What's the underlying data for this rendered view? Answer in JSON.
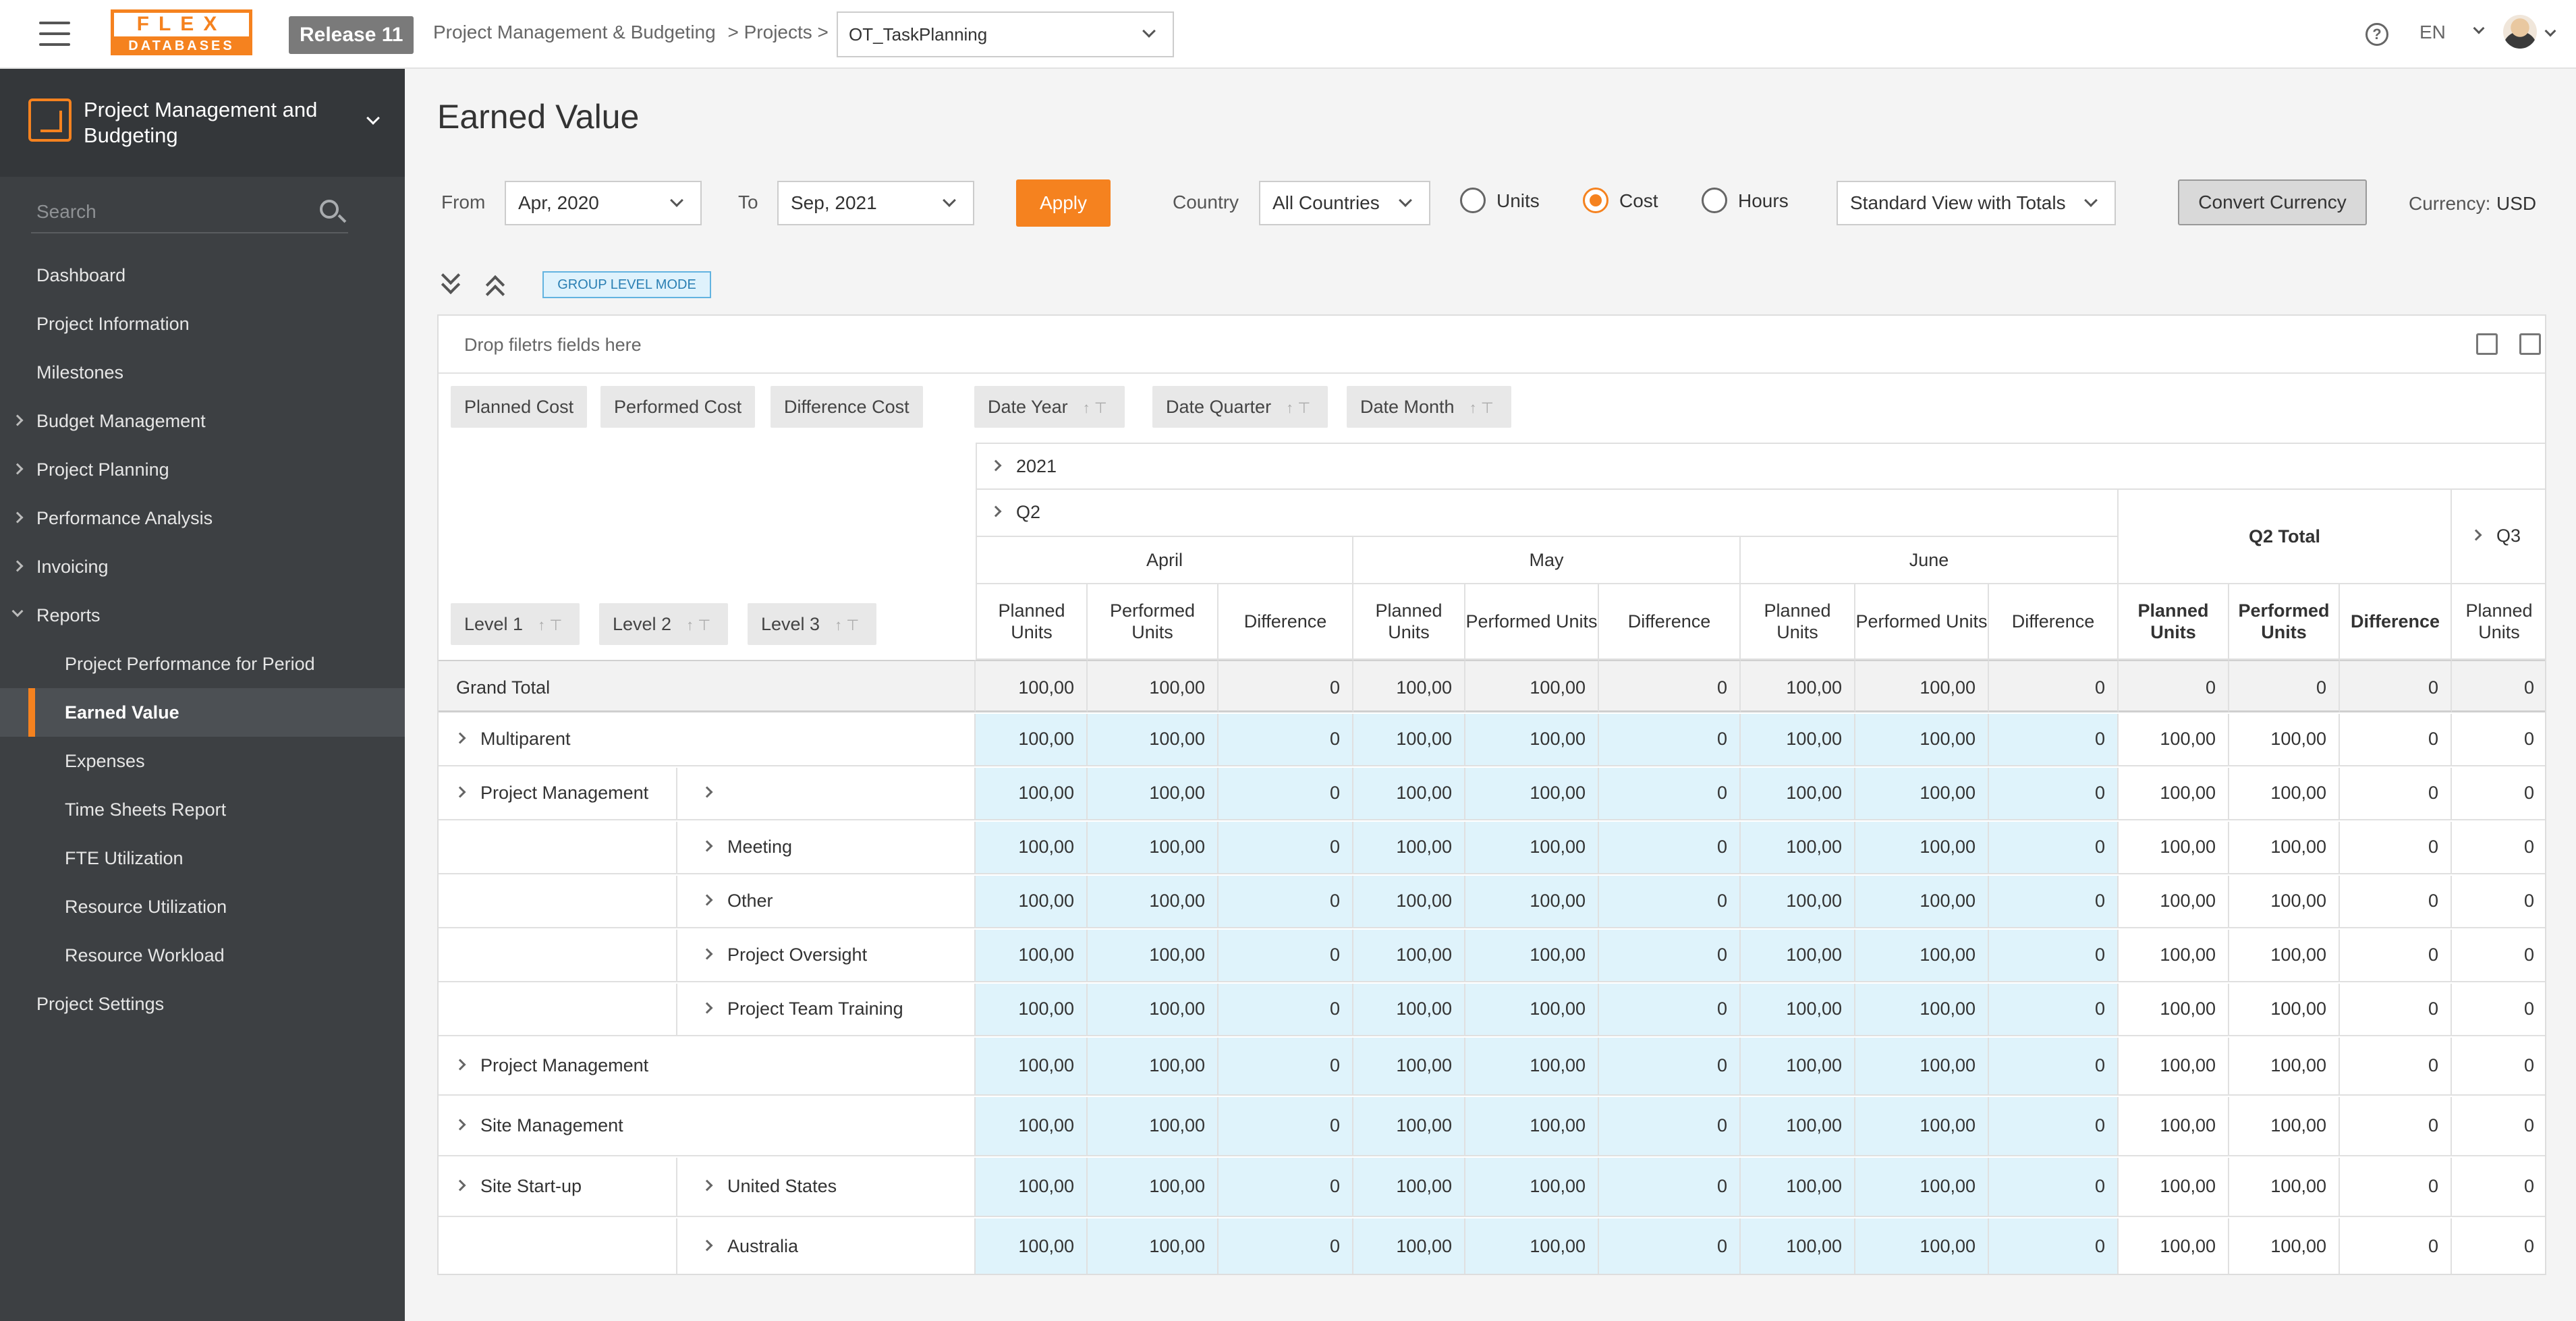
{
  "header": {
    "logo_top": "FLEX",
    "logo_bottom": "DATABASES",
    "release": "Release 11",
    "breadcrumb": [
      "Project Management & Budgeting",
      "> Projects >"
    ],
    "project": "OT_TaskPlanning",
    "language": "EN"
  },
  "sidebar": {
    "module": "Project Management and Budgeting",
    "search_placeholder": "Search",
    "items": [
      {
        "label": "Dashboard"
      },
      {
        "label": "Project Information"
      },
      {
        "label": "Milestones"
      },
      {
        "label": "Budget Management"
      },
      {
        "label": "Project Planning"
      },
      {
        "label": "Performance Analysis"
      },
      {
        "label": "Invoicing"
      },
      {
        "label": "Reports"
      },
      {
        "label": "Project Performance for Period"
      },
      {
        "label": "Earned Value"
      },
      {
        "label": "Expenses"
      },
      {
        "label": "Time Sheets Report"
      },
      {
        "label": "FTE Utilization"
      },
      {
        "label": "Resource Utilization"
      },
      {
        "label": "Resource Workload"
      },
      {
        "label": "Project Settings"
      }
    ]
  },
  "page": {
    "title": "Earned Value",
    "from_label": "From",
    "from_value": "Apr, 2020",
    "to_label": "To",
    "to_value": "Sep, 2021",
    "apply": "Apply",
    "country_label": "Country",
    "country_value": "All Countries",
    "radio_units": "Units",
    "radio_cost": "Cost",
    "radio_hours": "Hours",
    "selected_mode": "Cost",
    "view": "Standard View with Totals",
    "convert": "Convert Currency",
    "currency_label": "Currency:",
    "currency_value": "USD",
    "group_mode": "GROUP LEVEL MODE"
  },
  "pivot": {
    "drop_text": "Drop filetrs fields here",
    "data_fields": [
      "Planned Cost",
      "Performed Cost",
      "Difference Cost"
    ],
    "col_fields": [
      "Date Year",
      "Date Quarter",
      "Date Month"
    ],
    "row_fields": [
      "Level 1",
      "Level 2",
      "Level 3"
    ],
    "year": "2021",
    "quarter": "Q2",
    "q_total": "Q2 Total",
    "q_next": "Q3",
    "months": [
      "April",
      "May",
      "June"
    ],
    "measure_h": [
      "Planned Units",
      "Performed Units",
      "Difference"
    ],
    "grand_total": "Grand Total",
    "grand_values": [
      "100,00",
      "100,00",
      "0",
      "100,00",
      "100,00",
      "0",
      "100,00",
      "100,00",
      "0",
      "0",
      "0",
      "0",
      "0"
    ],
    "rows": [
      {
        "l1": "Multiparent",
        "l2": "",
        "l2exp": false,
        "values": [
          "100,00",
          "100,00",
          "0",
          "100,00",
          "100,00",
          "0",
          "100,00",
          "100,00",
          "0",
          "100,00",
          "100,00",
          "0",
          "0"
        ]
      },
      {
        "l1": "Project Management",
        "l2": "",
        "l2exp": true,
        "values": [
          "100,00",
          "100,00",
          "0",
          "100,00",
          "100,00",
          "0",
          "100,00",
          "100,00",
          "0",
          "100,00",
          "100,00",
          "0",
          "0"
        ]
      },
      {
        "l1": "",
        "l2": "Meeting",
        "l2exp": true,
        "values": [
          "100,00",
          "100,00",
          "0",
          "100,00",
          "100,00",
          "0",
          "100,00",
          "100,00",
          "0",
          "100,00",
          "100,00",
          "0",
          "0"
        ]
      },
      {
        "l1": "",
        "l2": "Other",
        "l2exp": true,
        "values": [
          "100,00",
          "100,00",
          "0",
          "100,00",
          "100,00",
          "0",
          "100,00",
          "100,00",
          "0",
          "100,00",
          "100,00",
          "0",
          "0"
        ]
      },
      {
        "l1": "",
        "l2": "Project Oversight",
        "l2exp": true,
        "values": [
          "100,00",
          "100,00",
          "0",
          "100,00",
          "100,00",
          "0",
          "100,00",
          "100,00",
          "0",
          "100,00",
          "100,00",
          "0",
          "0"
        ]
      },
      {
        "l1": "",
        "l2": "Project Team Training",
        "l2exp": true,
        "values": [
          "100,00",
          "100,00",
          "0",
          "100,00",
          "100,00",
          "0",
          "100,00",
          "100,00",
          "0",
          "100,00",
          "100,00",
          "0",
          "0"
        ]
      },
      {
        "l1": "Project Management",
        "l2": "",
        "l2exp": false,
        "values": [
          "100,00",
          "100,00",
          "0",
          "100,00",
          "100,00",
          "0",
          "100,00",
          "100,00",
          "0",
          "100,00",
          "100,00",
          "0",
          "0"
        ]
      },
      {
        "l1": "Site Management",
        "l2": "",
        "l2exp": false,
        "values": [
          "100,00",
          "100,00",
          "0",
          "100,00",
          "100,00",
          "0",
          "100,00",
          "100,00",
          "0",
          "100,00",
          "100,00",
          "0",
          "0"
        ]
      },
      {
        "l1": "Site Start-up",
        "l2": "United States",
        "l2exp": true,
        "values": [
          "100,00",
          "100,00",
          "0",
          "100,00",
          "100,00",
          "0",
          "100,00",
          "100,00",
          "0",
          "100,00",
          "100,00",
          "0",
          "0"
        ]
      },
      {
        "l1": "",
        "l2": "Australia",
        "l2exp": true,
        "values": [
          "100,00",
          "100,00",
          "0",
          "100,00",
          "100,00",
          "0",
          "100,00",
          "100,00",
          "0",
          "100,00",
          "100,00",
          "0",
          "0"
        ]
      }
    ]
  }
}
